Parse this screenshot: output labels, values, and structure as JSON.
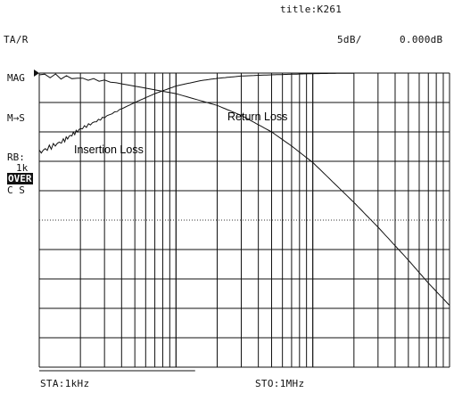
{
  "header": {
    "title": "title:K261",
    "channel": "TA/R",
    "scale": "5dB/",
    "ref_level": "0.000dB"
  },
  "side_labels": {
    "format": "MAG",
    "mode": "M→S",
    "rbw_label": "RB:",
    "rbw_value": "1k",
    "over_badge": "OVER",
    "cs": "C S"
  },
  "footer": {
    "start": "STA:1kHz",
    "stop": "STO:1MHz"
  },
  "chart_data": {
    "type": "line",
    "x_scale": "log",
    "xlim": [
      1000,
      1000000
    ],
    "ylim": [
      -50,
      0
    ],
    "y_units": "dB",
    "y_per_div": 5,
    "ref_line_level": 0,
    "grid": true,
    "annotations": [
      "Return Loss",
      "Insertion Loss"
    ],
    "series": [
      {
        "name": "Return Loss",
        "x": [
          1000,
          3000,
          10000,
          20000,
          30000,
          50000,
          70000,
          100000,
          200000,
          300000,
          500000,
          700000,
          1000000
        ],
        "y": [
          -0.3,
          -1.3,
          -3.5,
          -5.5,
          -7.2,
          -10.0,
          -12.4,
          -15.2,
          -22.0,
          -26.2,
          -31.8,
          -35.7,
          -39.5
        ]
      },
      {
        "name": "Insertion Loss",
        "x": [
          1000,
          1500,
          2000,
          3000,
          5000,
          7000,
          10000,
          15000,
          20000,
          30000,
          50000,
          70000,
          100000,
          150000,
          200000
        ],
        "y": [
          -13.5,
          -11.5,
          -9.5,
          -7.5,
          -5.0,
          -3.5,
          -2.2,
          -1.3,
          -0.9,
          -0.5,
          -0.3,
          -0.2,
          -0.1,
          -0.05,
          -0.05
        ]
      }
    ]
  }
}
